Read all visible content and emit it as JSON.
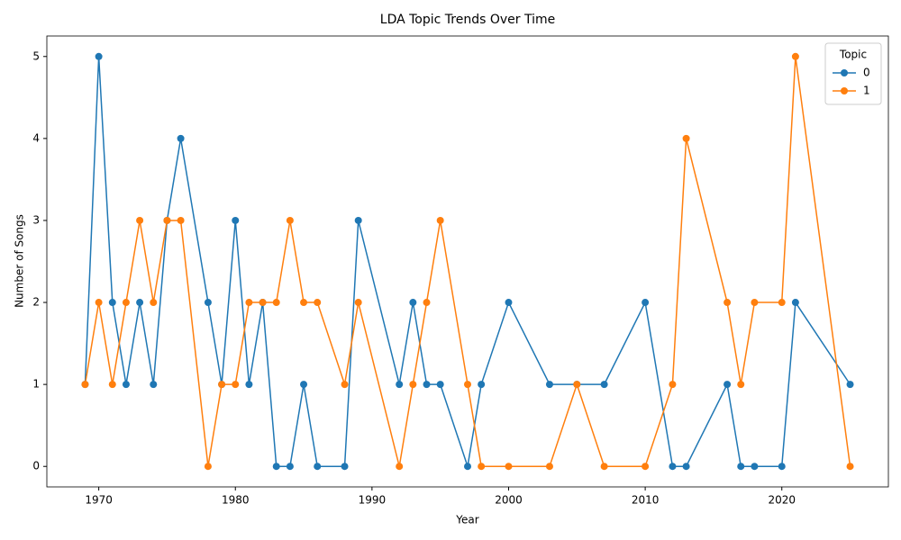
{
  "chart_data": {
    "type": "line",
    "title": "LDA Topic Trends Over Time",
    "xlabel": "Year",
    "ylabel": "Number of Songs",
    "legend_title": "Topic",
    "legend": "upper right",
    "marker": "o",
    "x": [
      1969,
      1970,
      1971,
      1972,
      1973,
      1974,
      1975,
      1976,
      1978,
      1979,
      1980,
      1981,
      1982,
      1983,
      1984,
      1985,
      1986,
      1988,
      1989,
      1992,
      1993,
      1994,
      1995,
      1997,
      1998,
      2000,
      2003,
      2005,
      2007,
      2010,
      2012,
      2013,
      2016,
      2017,
      2018,
      2020,
      2021,
      2025
    ],
    "series": [
      {
        "name": "0",
        "color": "#1f77b4",
        "values": [
          1,
          5,
          2,
          1,
          2,
          1,
          3,
          4,
          2,
          1,
          3,
          1,
          2,
          0,
          0,
          1,
          0,
          0,
          3,
          1,
          2,
          1,
          1,
          0,
          1,
          2,
          1,
          1,
          1,
          2,
          0,
          0,
          1,
          0,
          0,
          0,
          2,
          1
        ]
      },
      {
        "name": "1",
        "color": "#ff7f0e",
        "values": [
          1,
          2,
          1,
          2,
          3,
          2,
          3,
          3,
          0,
          1,
          1,
          2,
          2,
          2,
          3,
          2,
          2,
          1,
          2,
          0,
          1,
          2,
          3,
          1,
          0,
          0,
          0,
          1,
          0,
          0,
          1,
          4,
          2,
          1,
          2,
          2,
          5,
          0
        ]
      }
    ],
    "xlim": [
      1966.2,
      2027.8
    ],
    "ylim": [
      -0.25,
      5.25
    ],
    "xticks": [
      1970,
      1980,
      1990,
      2000,
      2010,
      2020
    ],
    "yticks": [
      0,
      1,
      2,
      3,
      4,
      5
    ]
  }
}
